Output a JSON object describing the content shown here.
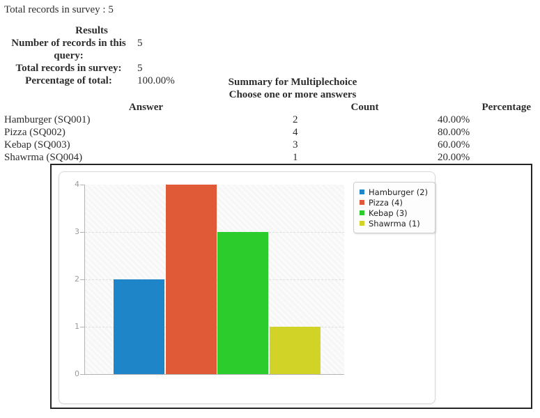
{
  "page": {
    "top_note": "Total records in survey : 5"
  },
  "results": {
    "title": "Results",
    "rows": [
      {
        "label": "Number of records in this query:",
        "value": "5"
      },
      {
        "label": "Total records in survey:",
        "value": "5"
      },
      {
        "label": "Percentage of total:",
        "value": "100.00%"
      }
    ]
  },
  "summary": {
    "title": "Summary for Multiplechoice",
    "subtitle": "Choose one or more answers"
  },
  "table": {
    "headers": [
      "Answer",
      "Count",
      "Percentage"
    ],
    "rows": [
      {
        "answer": "Hamburger (SQ001)",
        "count": "2",
        "percentage": "40.00%"
      },
      {
        "answer": "Pizza (SQ002)",
        "count": "4",
        "percentage": "80.00%"
      },
      {
        "answer": "Kebap (SQ003)",
        "count": "3",
        "percentage": "60.00%"
      },
      {
        "answer": "Shawrma (SQ004)",
        "count": "1",
        "percentage": "20.00%"
      }
    ]
  },
  "chart_data": {
    "type": "bar",
    "title": "",
    "xlabel": "",
    "ylabel": "",
    "categories": [
      "Hamburger",
      "Pizza",
      "Kebap",
      "Shawrma"
    ],
    "values": [
      2,
      4,
      3,
      1
    ],
    "colors": [
      "#1e86c8",
      "#e05a38",
      "#2dcc2d",
      "#d1d326"
    ],
    "legend": [
      "Hamburger (2)",
      "Pizza (4)",
      "Kebap (3)",
      "Shawrma (1)"
    ],
    "legend_position": "top-right",
    "ylim": [
      0,
      4
    ],
    "yticks": [
      0,
      1,
      2,
      3,
      4
    ],
    "grid": "horizontal-dashed"
  }
}
